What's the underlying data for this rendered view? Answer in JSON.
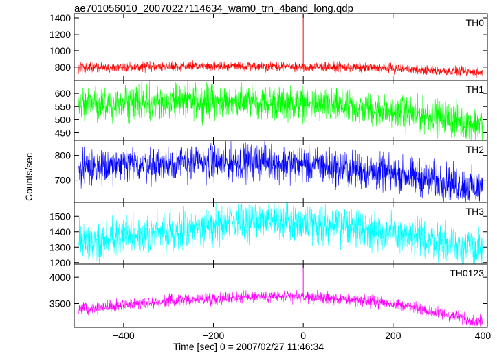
{
  "title": "ae701056010_20070227114634_wam0_trn_4band_long.qdp",
  "chart_data": {
    "type": "line",
    "xlabel": "Time [sec] 0 = 2007/02/27 11:46:34",
    "ylabel": "Counts/sec",
    "xlim": [
      -510,
      410
    ],
    "x_ticks": [
      -400,
      -200,
      0,
      200,
      400
    ],
    "grid": false,
    "panels": [
      {
        "name": "TH0",
        "color": "#ff0000",
        "ylim": [
          640,
          1450
        ],
        "y_ticks": [
          800,
          1000,
          1200,
          1400
        ],
        "trend": {
          "x": [
            -500,
            -300,
            -100,
            0,
            100,
            200,
            300,
            400
          ],
          "y": [
            790,
            810,
            810,
            805,
            795,
            785,
            755,
            735
          ]
        },
        "noise": 35,
        "spike": {
          "x": 0,
          "y": 1450
        }
      },
      {
        "name": "TH1",
        "color": "#00ff00",
        "ylim": [
          420,
          650
        ],
        "y_ticks": [
          450,
          500,
          550,
          600
        ],
        "trend": {
          "x": [
            -500,
            -300,
            -100,
            0,
            100,
            200,
            300,
            400
          ],
          "y": [
            560,
            570,
            568,
            560,
            545,
            530,
            510,
            480
          ]
        },
        "noise": 40,
        "spike": null
      },
      {
        "name": "TH2",
        "color": "#0000ff",
        "ylim": [
          610,
          860
        ],
        "y_ticks": [
          700,
          800
        ],
        "trend": {
          "x": [
            -500,
            -300,
            -100,
            0,
            100,
            200,
            300,
            400
          ],
          "y": [
            745,
            770,
            775,
            765,
            745,
            725,
            700,
            665
          ]
        },
        "noise": 45,
        "spike": null
      },
      {
        "name": "TH3",
        "color": "#00ffff",
        "ylim": [
          1190,
          1590
        ],
        "y_ticks": [
          1200,
          1300,
          1400,
          1500
        ],
        "trend": {
          "x": [
            -500,
            -300,
            -200,
            -100,
            0,
            100,
            200,
            300,
            400
          ],
          "y": [
            1330,
            1400,
            1440,
            1470,
            1460,
            1430,
            1390,
            1340,
            1280
          ]
        },
        "noise": 75,
        "spike": null
      },
      {
        "name": "TH0123",
        "color": "#ff00ff",
        "ylim": [
          3050,
          4250
        ],
        "y_ticks": [
          3500,
          4000
        ],
        "trend": {
          "x": [
            -500,
            -300,
            -200,
            -100,
            0,
            100,
            200,
            300,
            400
          ],
          "y": [
            3400,
            3550,
            3600,
            3640,
            3620,
            3580,
            3500,
            3320,
            3150
          ]
        },
        "noise": 70,
        "spike": {
          "x": 0,
          "y": 4250
        }
      }
    ]
  }
}
